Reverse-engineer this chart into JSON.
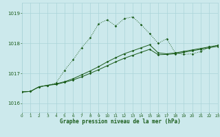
{
  "xlabel": "Graphe pression niveau de la mer (hPa)",
  "xlim": [
    0,
    23
  ],
  "ylim": [
    1015.7,
    1019.35
  ],
  "yticks": [
    1016,
    1017,
    1018,
    1019
  ],
  "xticks": [
    0,
    1,
    2,
    3,
    4,
    5,
    6,
    7,
    8,
    9,
    10,
    11,
    12,
    13,
    14,
    15,
    16,
    17,
    18,
    19,
    20,
    21,
    22,
    23
  ],
  "background_color": "#cce9ec",
  "grid_color": "#aad4d8",
  "line_color": "#1a5c1a",
  "line1": [
    1016.38,
    1016.4,
    1016.55,
    1016.6,
    1016.63,
    1016.7,
    1016.78,
    1016.88,
    1017.0,
    1017.12,
    1017.25,
    1017.38,
    1017.5,
    1017.6,
    1017.7,
    1017.8,
    1017.62,
    1017.63,
    1017.65,
    1017.7,
    1017.75,
    1017.8,
    1017.85,
    1017.9
  ],
  "line2": [
    1016.38,
    1016.4,
    1016.55,
    1016.6,
    1016.65,
    1016.72,
    1016.82,
    1016.95,
    1017.08,
    1017.22,
    1017.38,
    1017.52,
    1017.65,
    1017.75,
    1017.85,
    1017.95,
    1017.68,
    1017.65,
    1017.68,
    1017.73,
    1017.78,
    1017.83,
    1017.88,
    1017.93
  ],
  "line3": [
    1016.38,
    1016.4,
    1016.55,
    1016.6,
    1016.68,
    1017.1,
    1017.45,
    1017.85,
    1018.18,
    1018.65,
    1018.78,
    1018.58,
    1018.82,
    1018.88,
    1018.62,
    1018.32,
    1018.0,
    1018.15,
    1017.68,
    1017.63,
    1017.65,
    1017.72,
    1017.88,
    1017.93
  ]
}
